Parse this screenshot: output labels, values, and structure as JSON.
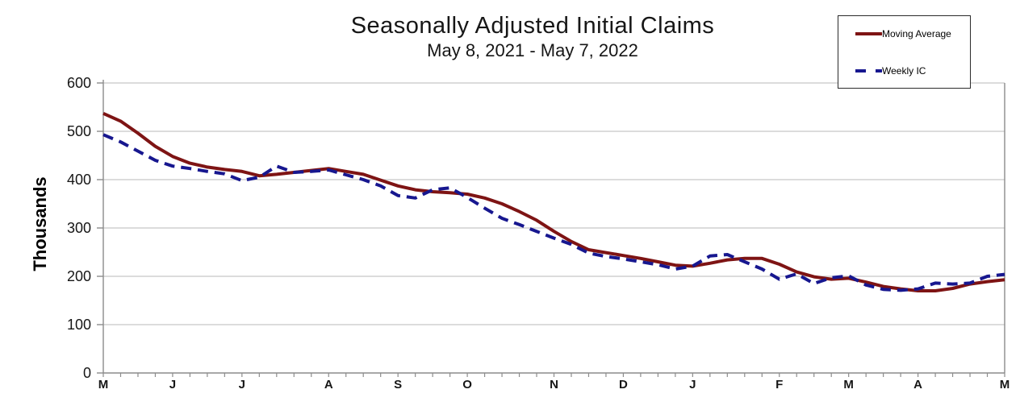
{
  "chart": {
    "title": "Seasonally Adjusted Initial Claims",
    "subtitle": "May 8, 2021 - May 7, 2022",
    "y_axis_label": "Thousands",
    "legend": [
      {
        "label": "Moving Average",
        "style": "solid",
        "color": "#7E1414"
      },
      {
        "label": "Weekly IC",
        "style": "dashed",
        "color": "#17178F"
      }
    ],
    "colors": {
      "gridline": "#C6C6C6",
      "axis": "#8C8C8C",
      "text": "#111111"
    },
    "chart_data": {
      "type": "line",
      "title": "Seasonally Adjusted Initial Claims",
      "subtitle": "May 8, 2021 - May 7, 2022",
      "ylabel": "Thousands",
      "xlabel": "",
      "x_unit": "weeks ending May 8, 2021 through May 7, 2022",
      "n_points": 53,
      "ylim": [
        0,
        600
      ],
      "yticks": [
        0,
        100,
        200,
        300,
        400,
        500,
        600
      ],
      "grid": "horizontal",
      "legend_position": "top-right",
      "month_ticks": [
        {
          "week": 0,
          "label": "M"
        },
        {
          "week": 4,
          "label": "J"
        },
        {
          "week": 8,
          "label": "J"
        },
        {
          "week": 13,
          "label": "A"
        },
        {
          "week": 17,
          "label": "S"
        },
        {
          "week": 21,
          "label": "O"
        },
        {
          "week": 26,
          "label": "N"
        },
        {
          "week": 30,
          "label": "D"
        },
        {
          "week": 34,
          "label": "J"
        },
        {
          "week": 39,
          "label": "F"
        },
        {
          "week": 43,
          "label": "M"
        },
        {
          "week": 47,
          "label": "A"
        },
        {
          "week": 52,
          "label": "M"
        }
      ],
      "series": [
        {
          "name": "Moving Average",
          "color": "#7E1414",
          "dash": false,
          "values": [
            537,
            521,
            496,
            469,
            448,
            434,
            426,
            421,
            417,
            408,
            411,
            415,
            419,
            423,
            417,
            411,
            399,
            387,
            379,
            375,
            373,
            370,
            362,
            350,
            334,
            316,
            293,
            272,
            255,
            249,
            243,
            237,
            230,
            223,
            221,
            227,
            234,
            237,
            237,
            225,
            209,
            199,
            194,
            196,
            188,
            179,
            174,
            170,
            170,
            175,
            184,
            189,
            193
          ]
        },
        {
          "name": "Weekly IC",
          "color": "#17178F",
          "dash": true,
          "values": [
            493,
            478,
            459,
            440,
            428,
            423,
            417,
            412,
            398,
            405,
            428,
            415,
            417,
            420,
            410,
            400,
            387,
            367,
            362,
            379,
            383,
            363,
            341,
            320,
            307,
            293,
            279,
            266,
            248,
            241,
            236,
            230,
            224,
            215,
            221,
            242,
            245,
            230,
            215,
            194,
            205,
            185,
            197,
            201,
            182,
            173,
            171,
            174,
            186,
            184,
            186,
            200,
            204
          ]
        }
      ]
    }
  }
}
